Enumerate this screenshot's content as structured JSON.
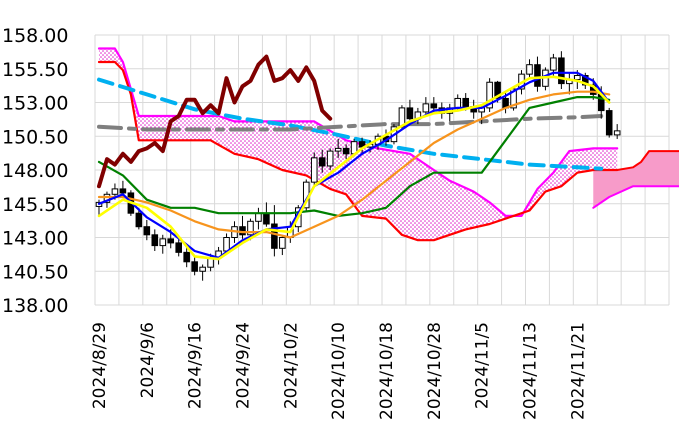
{
  "chart_data": {
    "type": "line",
    "title": "",
    "xlabel": "",
    "ylabel": "",
    "ylim": [
      138.0,
      158.0
    ],
    "y_ticks": [
      "158.00",
      "155.50",
      "153.00",
      "150.50",
      "148.00",
      "145.50",
      "143.00",
      "140.50",
      "138.00"
    ],
    "x_ticks": [
      "2024/8/29",
      "2024/9/6",
      "2024/9/16",
      "2024/9/24",
      "2024/10/2",
      "2024/10/10",
      "2024/10/18",
      "2024/10/28",
      "2024/11/5",
      "2024/11/13",
      "2024/11/21"
    ],
    "x_tick_index": [
      0,
      6,
      12,
      18,
      24,
      30,
      36,
      42,
      48,
      54,
      60
    ],
    "grid": "horizontal and vertical",
    "legend": "none",
    "n_bars": 66,
    "candles": [
      [
        145.3,
        145.8,
        144.6,
        145.6
      ],
      [
        145.6,
        146.4,
        145.2,
        146.2
      ],
      [
        146.2,
        147.0,
        145.8,
        146.6
      ],
      [
        146.6,
        147.2,
        146.0,
        146.3
      ],
      [
        146.3,
        146.5,
        144.6,
        144.8
      ],
      [
        144.8,
        145.2,
        143.6,
        143.8
      ],
      [
        143.8,
        144.3,
        142.8,
        143.2
      ],
      [
        143.2,
        143.6,
        142.0,
        142.4
      ],
      [
        142.4,
        143.2,
        141.8,
        142.9
      ],
      [
        142.9,
        143.6,
        142.2,
        142.6
      ],
      [
        142.6,
        143.0,
        141.6,
        141.9
      ],
      [
        141.9,
        142.4,
        140.8,
        141.2
      ],
      [
        141.2,
        141.6,
        140.2,
        140.5
      ],
      [
        140.5,
        141.0,
        139.8,
        140.8
      ],
      [
        140.8,
        141.8,
        140.5,
        141.5
      ],
      [
        141.5,
        142.3,
        141.0,
        142.0
      ],
      [
        142.0,
        143.3,
        141.8,
        143.0
      ],
      [
        143.0,
        144.2,
        142.6,
        143.8
      ],
      [
        143.8,
        144.6,
        142.9,
        143.2
      ],
      [
        143.2,
        144.4,
        142.8,
        144.2
      ],
      [
        144.2,
        145.2,
        143.6,
        144.8
      ],
      [
        144.8,
        145.6,
        143.8,
        144.0
      ],
      [
        144.0,
        145.4,
        141.6,
        142.2
      ],
      [
        142.2,
        143.2,
        141.7,
        143.0
      ],
      [
        143.0,
        144.2,
        142.6,
        143.8
      ],
      [
        143.8,
        145.4,
        143.4,
        145.2
      ],
      [
        145.2,
        147.3,
        145.0,
        147.1
      ],
      [
        147.1,
        149.3,
        146.8,
        148.9
      ],
      [
        148.9,
        149.5,
        147.8,
        148.3
      ],
      [
        148.3,
        149.6,
        148.0,
        149.4
      ],
      [
        149.4,
        150.3,
        148.9,
        149.6
      ],
      [
        149.6,
        149.9,
        148.8,
        149.2
      ],
      [
        149.2,
        150.3,
        149.0,
        150.1
      ],
      [
        150.1,
        150.4,
        149.2,
        149.7
      ],
      [
        149.7,
        150.2,
        149.3,
        149.9
      ],
      [
        149.9,
        150.7,
        149.5,
        150.5
      ],
      [
        150.5,
        151.0,
        149.8,
        150.1
      ],
      [
        150.1,
        151.4,
        149.9,
        151.2
      ],
      [
        151.2,
        152.8,
        151.0,
        152.6
      ],
      [
        152.6,
        153.2,
        151.6,
        151.8
      ],
      [
        151.8,
        152.6,
        151.4,
        152.3
      ],
      [
        152.3,
        153.4,
        152.0,
        152.9
      ],
      [
        152.9,
        153.4,
        152.2,
        152.6
      ],
      [
        152.6,
        153.0,
        151.8,
        152.2
      ],
      [
        152.2,
        152.9,
        151.6,
        152.6
      ],
      [
        152.6,
        153.6,
        152.4,
        153.3
      ],
      [
        153.3,
        153.7,
        152.4,
        152.7
      ],
      [
        152.7,
        153.2,
        151.8,
        152.3
      ],
      [
        152.3,
        152.8,
        151.4,
        152.6
      ],
      [
        152.6,
        154.8,
        152.3,
        154.5
      ],
      [
        154.5,
        154.6,
        153.0,
        153.3
      ],
      [
        153.3,
        153.8,
        152.2,
        152.6
      ],
      [
        152.6,
        154.2,
        152.4,
        154.0
      ],
      [
        154.0,
        155.4,
        153.6,
        155.1
      ],
      [
        155.1,
        156.2,
        154.8,
        155.8
      ],
      [
        155.8,
        156.4,
        153.8,
        154.2
      ],
      [
        154.2,
        155.6,
        153.9,
        155.4
      ],
      [
        155.4,
        156.6,
        155.0,
        156.3
      ],
      [
        156.3,
        156.8,
        154.0,
        154.4
      ],
      [
        154.4,
        155.2,
        153.6,
        154.7
      ],
      [
        154.7,
        155.4,
        154.0,
        155.0
      ],
      [
        155.0,
        155.2,
        154.0,
        154.3
      ],
      [
        154.3,
        154.8,
        153.2,
        153.6
      ],
      [
        153.6,
        154.2,
        151.8,
        152.4
      ],
      [
        152.4,
        152.6,
        150.4,
        150.6
      ],
      [
        150.6,
        151.4,
        150.3,
        150.9
      ]
    ],
    "series": [
      {
        "color": "#000000",
        "role": "candles"
      },
      {
        "color": "#0000ff",
        "role": "short moving average"
      },
      {
        "color": "#ffff00",
        "role": "bollinger/short line"
      },
      {
        "color": "#f7941d",
        "role": "medium moving average"
      },
      {
        "color": "#008000",
        "role": "kijun"
      },
      {
        "color": "#ff0000",
        "role": "span B"
      },
      {
        "color": "#ff00ff",
        "role": "span A"
      },
      {
        "color": "#800000",
        "role": "lagging span"
      },
      {
        "color": "#00b0f0",
        "role": "long moving average (dashed)"
      },
      {
        "color": "#7f7f7f",
        "role": "trend line (dash-dot)"
      }
    ],
    "lines": {
      "blue": [
        [
          0,
          145.5
        ],
        [
          3,
          146.2
        ],
        [
          6,
          144.5
        ],
        [
          9,
          143.4
        ],
        [
          12,
          142.0
        ],
        [
          15,
          141.5
        ],
        [
          18,
          142.8
        ],
        [
          21,
          143.6
        ],
        [
          24,
          143.8
        ],
        [
          27,
          146.8
        ],
        [
          30,
          147.8
        ],
        [
          33,
          149.2
        ],
        [
          36,
          150.2
        ],
        [
          39,
          151.4
        ],
        [
          42,
          152.4
        ],
        [
          45,
          152.6
        ],
        [
          48,
          152.6
        ],
        [
          51,
          153.5
        ],
        [
          54,
          154.5
        ],
        [
          57,
          155.2
        ],
        [
          60,
          155.2
        ],
        [
          62,
          154.6
        ],
        [
          64,
          153.0
        ]
      ],
      "yellow": [
        [
          0,
          144.6
        ],
        [
          3,
          145.8
        ],
        [
          6,
          145.2
        ],
        [
          9,
          143.8
        ],
        [
          12,
          141.6
        ],
        [
          15,
          141.4
        ],
        [
          18,
          142.6
        ],
        [
          21,
          143.6
        ],
        [
          24,
          143.4
        ],
        [
          27,
          146.8
        ],
        [
          30,
          148.2
        ],
        [
          33,
          149.6
        ],
        [
          36,
          150.6
        ],
        [
          39,
          151.6
        ],
        [
          42,
          152.2
        ],
        [
          45,
          152.4
        ],
        [
          48,
          152.8
        ],
        [
          51,
          153.8
        ],
        [
          54,
          154.8
        ],
        [
          57,
          154.9
        ],
        [
          60,
          154.6
        ],
        [
          62,
          154.2
        ],
        [
          64,
          153.0
        ]
      ],
      "orange": [
        [
          0,
          146.0
        ],
        [
          3,
          146.0
        ],
        [
          6,
          145.6
        ],
        [
          9,
          145.0
        ],
        [
          12,
          144.2
        ],
        [
          15,
          143.6
        ],
        [
          18,
          143.4
        ],
        [
          21,
          143.4
        ],
        [
          24,
          143.0
        ],
        [
          27,
          143.8
        ],
        [
          30,
          144.6
        ],
        [
          33,
          145.8
        ],
        [
          36,
          147.2
        ],
        [
          39,
          148.6
        ],
        [
          42,
          150.0
        ],
        [
          45,
          151.0
        ],
        [
          48,
          151.8
        ],
        [
          51,
          152.6
        ],
        [
          54,
          153.2
        ],
        [
          57,
          153.6
        ],
        [
          60,
          153.8
        ],
        [
          62,
          153.8
        ],
        [
          64,
          153.6
        ]
      ],
      "green": [
        [
          0,
          148.6
        ],
        [
          3,
          147.6
        ],
        [
          6,
          145.8
        ],
        [
          9,
          145.2
        ],
        [
          12,
          145.2
        ],
        [
          15,
          144.8
        ],
        [
          18,
          144.8
        ],
        [
          21,
          144.8
        ],
        [
          24,
          144.8
        ],
        [
          27,
          145.0
        ],
        [
          30,
          144.6
        ],
        [
          33,
          144.8
        ],
        [
          36,
          145.2
        ],
        [
          39,
          146.8
        ],
        [
          42,
          147.8
        ],
        [
          45,
          147.8
        ],
        [
          48,
          147.8
        ],
        [
          51,
          150.2
        ],
        [
          54,
          152.6
        ],
        [
          57,
          153.0
        ],
        [
          60,
          153.4
        ],
        [
          62,
          153.4
        ],
        [
          64,
          153.2
        ]
      ],
      "lagging": [
        [
          0,
          146.8
        ],
        [
          1,
          148.8
        ],
        [
          2,
          148.4
        ],
        [
          3,
          149.2
        ],
        [
          4,
          148.6
        ],
        [
          5,
          149.4
        ],
        [
          6,
          149.6
        ],
        [
          7,
          150.0
        ],
        [
          8,
          149.4
        ],
        [
          9,
          151.6
        ],
        [
          10,
          152.0
        ],
        [
          11,
          153.2
        ],
        [
          12,
          153.2
        ],
        [
          13,
          152.2
        ],
        [
          14,
          152.8
        ],
        [
          15,
          152.2
        ],
        [
          16,
          154.8
        ],
        [
          17,
          153.0
        ],
        [
          18,
          154.2
        ],
        [
          19,
          154.6
        ],
        [
          20,
          155.8
        ],
        [
          21,
          156.4
        ],
        [
          22,
          154.6
        ],
        [
          23,
          154.8
        ],
        [
          24,
          155.4
        ],
        [
          25,
          154.6
        ],
        [
          26,
          155.6
        ],
        [
          27,
          154.6
        ],
        [
          28,
          152.4
        ],
        [
          29,
          151.8
        ]
      ],
      "spanA": [
        [
          0,
          157.0
        ],
        [
          2,
          157.0
        ],
        [
          3,
          156.0
        ],
        [
          5,
          152.0
        ],
        [
          7,
          152.0
        ],
        [
          11,
          152.0
        ],
        [
          15,
          152.0
        ],
        [
          17,
          151.6
        ],
        [
          21,
          151.6
        ],
        [
          27,
          151.6
        ],
        [
          31,
          150.2
        ],
        [
          35,
          149.6
        ],
        [
          39,
          149.2
        ],
        [
          42,
          148.0
        ],
        [
          44,
          147.2
        ],
        [
          47,
          146.4
        ],
        [
          49,
          145.6
        ],
        [
          51,
          144.6
        ],
        [
          53,
          144.6
        ],
        [
          55,
          146.6
        ],
        [
          57,
          147.8
        ],
        [
          59,
          149.4
        ],
        [
          62,
          149.6
        ],
        [
          65,
          149.6
        ]
      ],
      "spanB": [
        [
          0,
          156.0
        ],
        [
          2,
          156.0
        ],
        [
          3,
          155.4
        ],
        [
          4,
          153.6
        ],
        [
          5,
          150.2
        ],
        [
          7,
          150.2
        ],
        [
          11,
          150.2
        ],
        [
          14,
          150.2
        ],
        [
          17,
          149.2
        ],
        [
          20,
          148.8
        ],
        [
          23,
          148.0
        ],
        [
          26,
          147.6
        ],
        [
          29,
          146.6
        ],
        [
          31,
          146.2
        ],
        [
          33,
          144.6
        ],
        [
          36,
          144.4
        ],
        [
          38,
          143.2
        ],
        [
          40,
          142.8
        ],
        [
          42,
          142.8
        ],
        [
          46,
          143.6
        ],
        [
          49,
          144.0
        ],
        [
          52,
          144.6
        ],
        [
          54,
          145.0
        ],
        [
          56,
          146.4
        ],
        [
          58,
          146.8
        ],
        [
          60,
          147.8
        ],
        [
          62,
          148.0
        ],
        [
          65,
          148.0
        ]
      ],
      "cyanDashed": [
        [
          0,
          154.7
        ],
        [
          6,
          153.6
        ],
        [
          12,
          152.5
        ],
        [
          18,
          151.8
        ],
        [
          24,
          151.3
        ],
        [
          30,
          150.6
        ],
        [
          36,
          149.8
        ],
        [
          42,
          149.2
        ],
        [
          48,
          148.8
        ],
        [
          54,
          148.4
        ],
        [
          60,
          148.2
        ],
        [
          63,
          148.1
        ]
      ],
      "grayDashDot": [
        [
          0,
          151.2
        ],
        [
          6,
          151.0
        ],
        [
          12,
          151.0
        ],
        [
          18,
          151.0
        ],
        [
          24,
          151.0
        ],
        [
          30,
          151.2
        ],
        [
          36,
          151.4
        ],
        [
          42,
          151.4
        ],
        [
          48,
          151.6
        ],
        [
          54,
          151.8
        ],
        [
          60,
          151.9
        ],
        [
          63,
          152.0
        ]
      ],
      "extB": [
        [
          62,
          148.0
        ],
        [
          65,
          148.0
        ],
        [
          67,
          148.2
        ],
        [
          68,
          148.6
        ],
        [
          69,
          149.4
        ],
        [
          73,
          149.4
        ]
      ],
      "extA": [
        [
          62,
          145.2
        ],
        [
          64,
          146.0
        ],
        [
          67,
          146.8
        ],
        [
          70,
          146.8
        ],
        [
          73,
          146.8
        ]
      ]
    }
  }
}
